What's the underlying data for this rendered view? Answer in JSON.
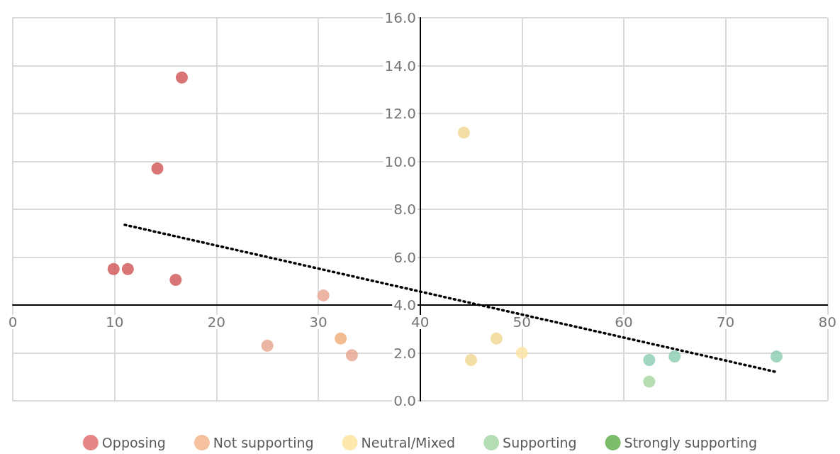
{
  "chart_data": {
    "type": "scatter",
    "xlim": [
      0,
      80
    ],
    "xticks": [
      0,
      10,
      20,
      30,
      40,
      50,
      60,
      70,
      80
    ],
    "ylim": [
      0,
      16
    ],
    "yticks": [
      {
        "value": 0,
        "label": "0.0"
      },
      {
        "value": 2,
        "label": "2.0"
      },
      {
        "value": 4,
        "label": "4.0"
      },
      {
        "value": 6,
        "label": "6.0"
      },
      {
        "value": 8,
        "label": "8.0"
      },
      {
        "value": 10,
        "label": "10.0"
      },
      {
        "value": 12,
        "label": "12.0"
      },
      {
        "value": 14,
        "label": "14.0"
      },
      {
        "value": 16,
        "label": "16.0"
      }
    ],
    "grid": true,
    "legend": "bottom",
    "marker": "circle",
    "series": [
      {
        "name": "Opposing",
        "color": "#e06666",
        "x": [
          9.9,
          11.3,
          14.2,
          16.6,
          16.0
        ],
        "values": [
          5.5,
          5.5,
          9.7,
          13.5,
          5.05
        ],
        "colors": [
          "#d05353",
          "#d05353",
          "#d05353",
          "#d05353",
          "#d05353"
        ]
      },
      {
        "name": "Not supporting",
        "color": "#f2b084",
        "x": [
          25.0,
          30.5,
          32.2,
          33.3
        ],
        "values": [
          2.3,
          4.4,
          2.6,
          1.9
        ],
        "colors": [
          "#e8a28c",
          "#e8a28c",
          "#f0aa74",
          "#e8a28c"
        ]
      },
      {
        "name": "Neutral/Mixed",
        "color": "#fde29a",
        "x": [
          44.3,
          45.0,
          47.5,
          50.0
        ],
        "values": [
          11.2,
          1.7,
          2.6,
          2.0
        ],
        "colors": [
          "#f0d690",
          "#f0d690",
          "#f0d690",
          "#fce39e"
        ]
      },
      {
        "name": "Supporting",
        "color": "#a3d5a3",
        "x": [
          62.5,
          62.5,
          65.0,
          75.0
        ],
        "values": [
          1.7,
          0.8,
          1.85,
          1.85
        ],
        "colors": [
          "#88ccb0",
          "#a5d5a0",
          "#88ccb0",
          "#88ccb0"
        ]
      },
      {
        "name": "Strongly supporting",
        "color": "#5aab46"
      },
      {
        "type": "line",
        "color": "#000000",
        "line_style": "dotted",
        "marker": "none",
        "x": [
          11.0,
          75.0
        ],
        "values": [
          7.35,
          1.2
        ]
      }
    ]
  }
}
